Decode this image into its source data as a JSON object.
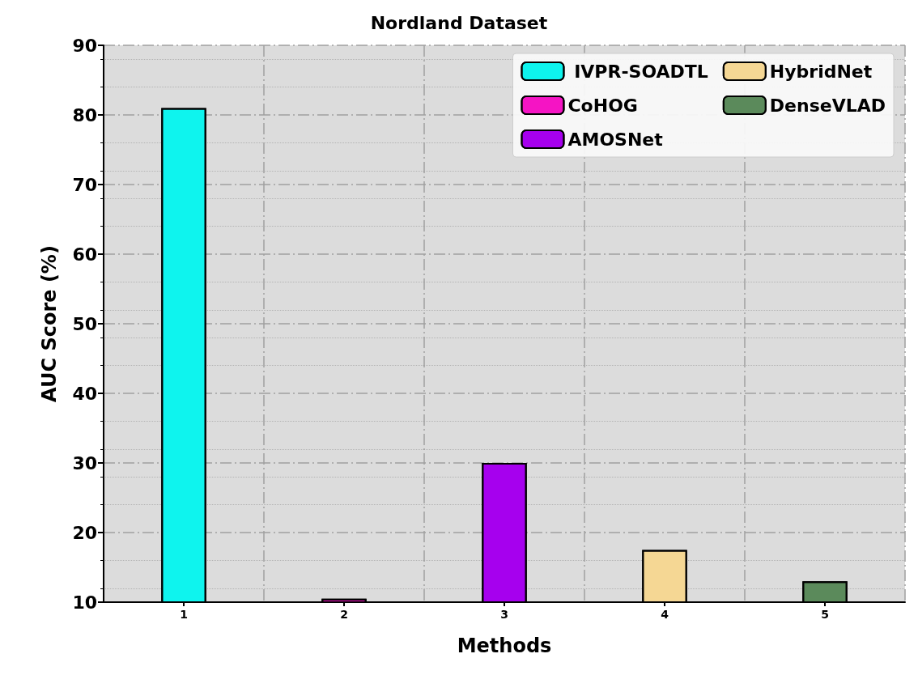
{
  "chart_data": {
    "type": "bar",
    "title": "Nordland Dataset",
    "xlabel": "Methods",
    "ylabel": "AUC Score (%)",
    "categories": [
      "1",
      "2",
      "3",
      "4",
      "5"
    ],
    "series": [
      {
        "name": " IVPR-SOADTL",
        "color": "#0ef4ee",
        "values": [
          81,
          null,
          null,
          null,
          null
        ]
      },
      {
        "name": "CoHOG",
        "color": "#f514c4",
        "values": [
          null,
          10.5,
          null,
          null,
          null
        ]
      },
      {
        "name": "AMOSNet",
        "color": "#a600ee",
        "values": [
          null,
          null,
          30,
          null,
          null
        ]
      },
      {
        "name": "HybridNet",
        "color": "#f5d794",
        "values": [
          null,
          null,
          null,
          17.5,
          null
        ]
      },
      {
        "name": "DenseVLAD",
        "color": "#5b8a5b",
        "values": [
          null,
          null,
          null,
          null,
          13
        ]
      }
    ],
    "ylim": [
      10,
      90
    ],
    "yticks": [
      10,
      20,
      30,
      40,
      50,
      60,
      70,
      80,
      90
    ],
    "grid": true,
    "legend": "top right"
  }
}
